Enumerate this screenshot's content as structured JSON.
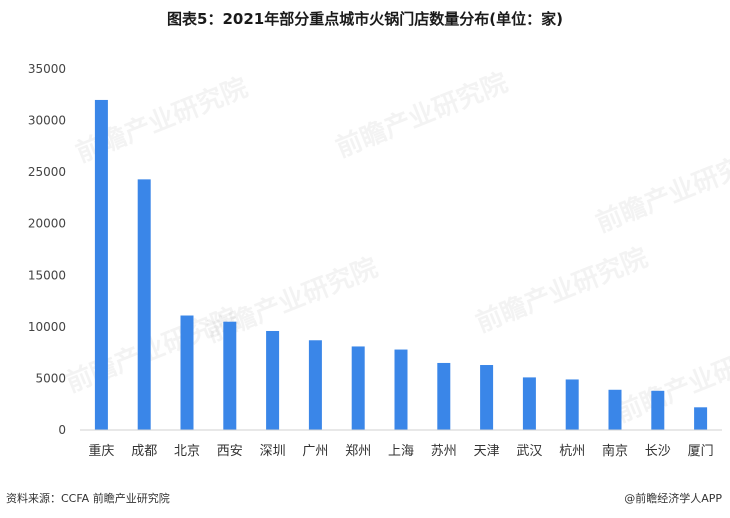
{
  "title": "图表5：2021年部分重点城市火锅门店数量分布(单位：家)",
  "footer_source": "资料来源：CCFA 前瞻产业研究院",
  "footer_brand": "@前瞻经济学人APP",
  "watermark_text": "前瞻产业研究院",
  "colors": {
    "bar": "#3a86e8"
  },
  "chart_data": {
    "type": "bar",
    "title": "图表5：2021年部分重点城市火锅门店数量分布(单位：家)",
    "xlabel": "",
    "ylabel": "",
    "ylim": [
      0,
      35000
    ],
    "yticks": [
      0,
      5000,
      10000,
      15000,
      20000,
      25000,
      30000,
      35000
    ],
    "grid": false,
    "legend": "none",
    "categories": [
      "重庆",
      "成都",
      "北京",
      "西安",
      "深圳",
      "广州",
      "郑州",
      "上海",
      "苏州",
      "天津",
      "武汉",
      "杭州",
      "南京",
      "长沙",
      "厦门"
    ],
    "values": [
      32000,
      24300,
      11100,
      10500,
      9600,
      8700,
      8100,
      7800,
      6500,
      6300,
      5100,
      4900,
      3900,
      3800,
      2200
    ]
  }
}
